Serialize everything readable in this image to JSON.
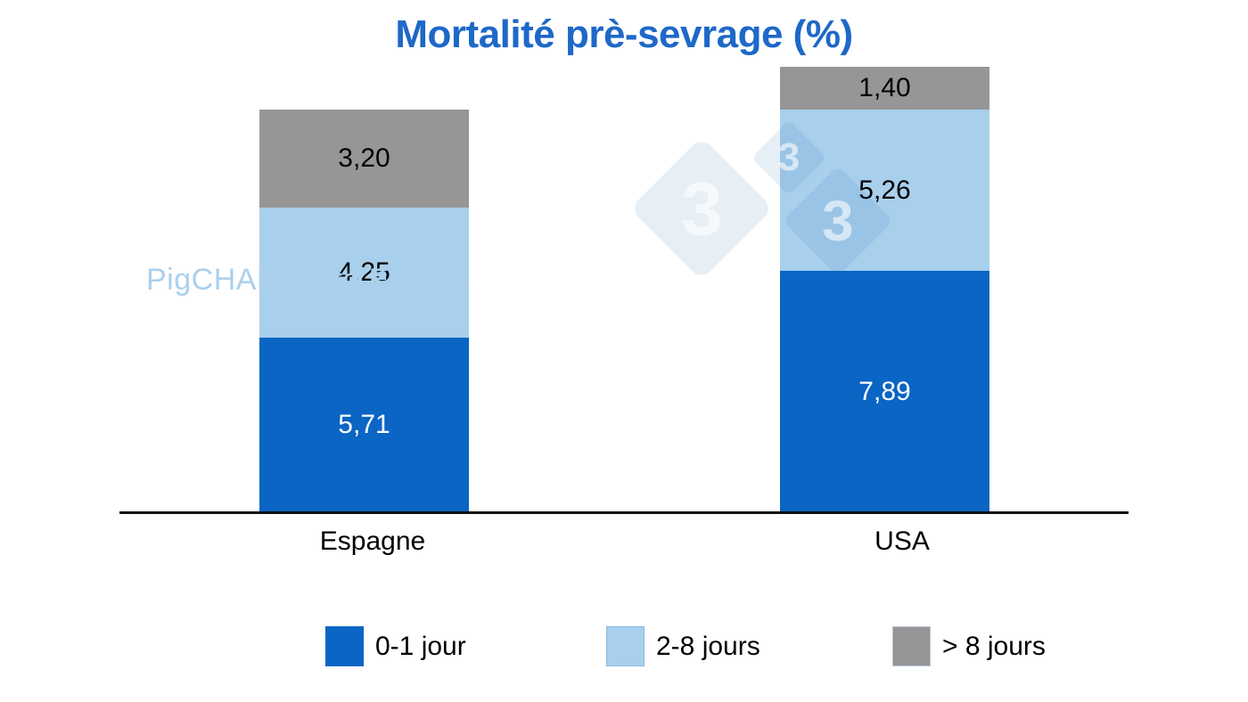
{
  "title": "Mortalité prè-sevrage (%)",
  "title_color": "#1e68c8",
  "axis_color": "#111111",
  "background_color": "#ffffff",
  "watermarks": {
    "pigchamp_text": "PigCHAMP Pro Europa",
    "pigchamp_color": "#abd0ee",
    "logo_digit": "3"
  },
  "chart_data": {
    "type": "bar",
    "stacked": true,
    "title": "Mortalité prè-sevrage (%)",
    "categories": [
      "Espagne",
      "USA"
    ],
    "series": [
      {
        "name": "0-1 jour",
        "color": "#0a65c4",
        "label_color": "#ffffff",
        "swatch_border": "#0a65c4",
        "values": [
          5.71,
          7.89
        ],
        "value_labels": [
          "5,71",
          "7,89"
        ]
      },
      {
        "name": "2-8 jours",
        "color": "#a8cfec",
        "label_color": "#000000",
        "swatch_border": "#8db8dd",
        "values": [
          4.25,
          5.26
        ],
        "value_labels": [
          "4,25",
          "5,26"
        ]
      },
      {
        "name": "> 8 jours",
        "color": "#969696",
        "label_color": "#000000",
        "swatch_border": "#b4c3d2",
        "values": [
          3.2,
          1.4
        ],
        "value_labels": [
          "3,20",
          "1,40"
        ]
      }
    ],
    "totals": [
      13.16,
      14.55
    ],
    "ylim": [
      0,
      14.55
    ],
    "grid": false,
    "axes_shown": "x-only",
    "legend_position": "bottom",
    "decimal_style": "comma"
  }
}
